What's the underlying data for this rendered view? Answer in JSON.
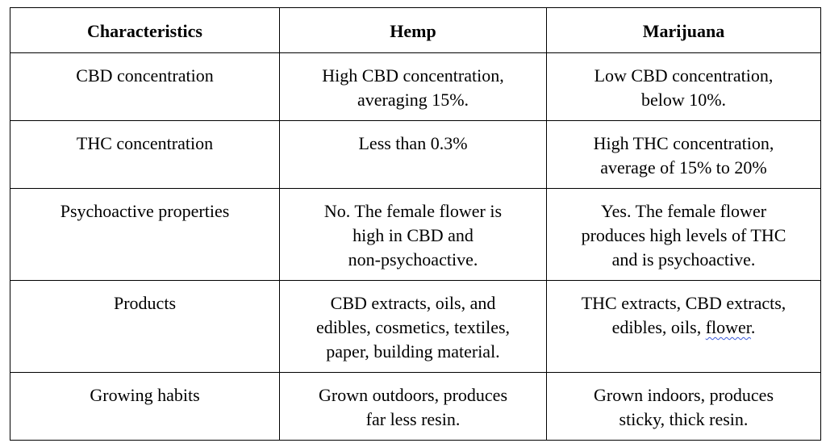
{
  "table": {
    "headers": [
      "Characteristics",
      "Hemp",
      "Marijuana"
    ],
    "rows": [
      {
        "characteristic": "CBD concentration",
        "hemp": "High CBD concentration,\naveraging 15%.",
        "marijuana": "Low CBD concentration,\nbelow 10%."
      },
      {
        "characteristic": "THC concentration",
        "hemp": "Less than 0.3%",
        "marijuana": "High THC concentration,\naverage of 15% to 20%"
      },
      {
        "characteristic": "Psychoactive properties",
        "hemp": "No. The female flower is\nhigh in CBD and\nnon-psychoactive.",
        "marijuana": "Yes. The female flower\nproduces high levels of THC\nand is psychoactive."
      },
      {
        "characteristic": "Products",
        "hemp": "CBD extracts, oils, and\nedibles, cosmetics, textiles,\npaper, building material.",
        "marijuana_prefix": "THC extracts, CBD extracts,\nedibles, oils, ",
        "marijuana_flagged": "flower",
        "marijuana_suffix": "."
      },
      {
        "characteristic": "Growing habits",
        "hemp": "Grown outdoors, produces\nfar less resin.",
        "marijuana": "Grown indoors, produces\nsticky, thick resin."
      }
    ]
  },
  "spellcheck_color": "#3b5bdb"
}
